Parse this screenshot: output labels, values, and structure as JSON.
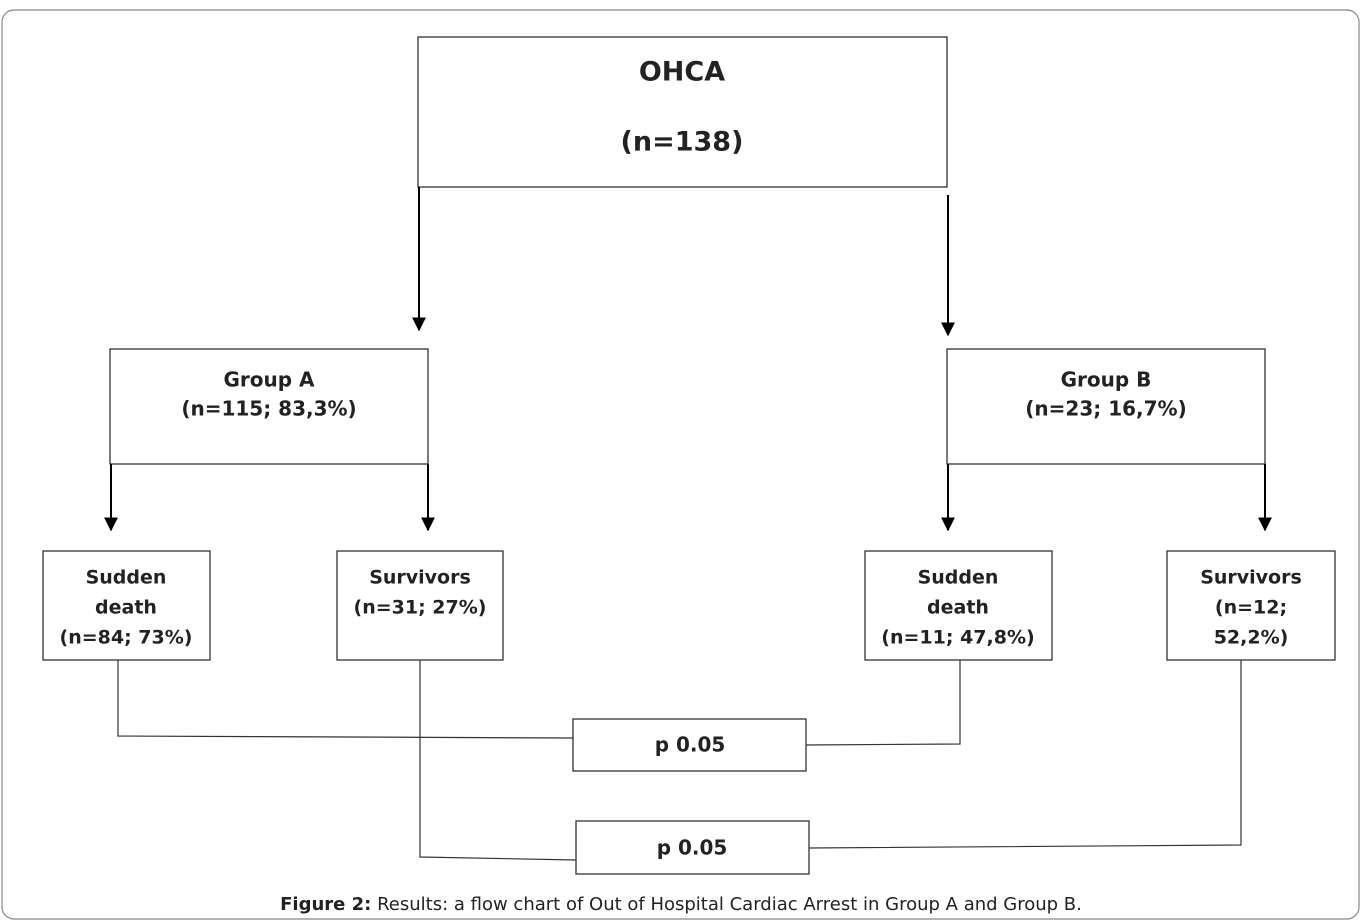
{
  "nodes": [
    {
      "lines": [
        "OHCA",
        "(n=138)"
      ]
    },
    {
      "lines": [
        "Group A",
        "(n=115; 83,3%)"
      ]
    },
    {
      "lines": [
        "Group B",
        "(n=23; 16,7%)"
      ]
    },
    {
      "lines": [
        "Sudden",
        "death",
        "(n=84; 73%)"
      ]
    },
    {
      "lines": [
        "Survivors",
        "(n=31; 27%)"
      ]
    },
    {
      "lines": [
        "Sudden",
        "death",
        "(n=11; 47,8%)"
      ]
    },
    {
      "lines": [
        "Survivors",
        "(n=12;",
        "52,2%)"
      ]
    },
    {
      "lines": [
        "p 0.05"
      ]
    },
    {
      "lines": [
        "p 0.05"
      ]
    }
  ],
  "caption": {
    "label": "Figure 2:",
    "text": "Results: a flow chart of Out of Hospital Cardiac Arrest in Group A and Group B."
  }
}
